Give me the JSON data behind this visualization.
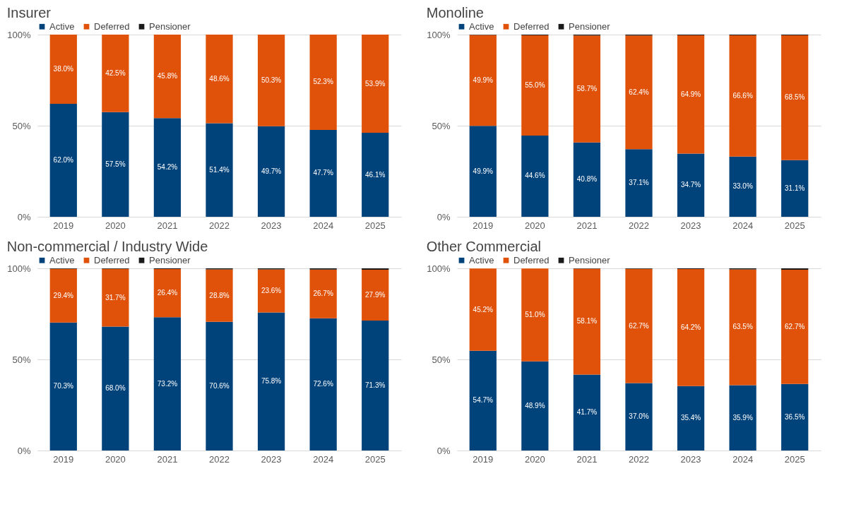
{
  "chart_data": [
    {
      "type": "bar",
      "title": "Insurer",
      "categories": [
        "2019",
        "2020",
        "2021",
        "2022",
        "2023",
        "2024",
        "2025"
      ],
      "stacked": true,
      "ylim": [
        0,
        100
      ],
      "yticks": [
        {
          "value": 0,
          "label": "0%"
        },
        {
          "value": 50,
          "label": "50%"
        },
        {
          "value": 100,
          "label": "100%"
        }
      ],
      "grid": "y",
      "legend": "top left",
      "series": [
        {
          "name": "Active",
          "color": "#00427a",
          "values": [
            62.0,
            57.5,
            54.2,
            51.4,
            49.7,
            47.7,
            46.1
          ],
          "value_labels": [
            "62.0%",
            "57.5%",
            "54.2%",
            "51.4%",
            "49.7%",
            "47.7%",
            "46.1%"
          ]
        },
        {
          "name": "Deferred",
          "color": "#e0520a",
          "values": [
            38.0,
            42.5,
            45.8,
            48.6,
            50.3,
            52.3,
            53.9
          ],
          "value_labels": [
            "38.0%",
            "42.5%",
            "45.8%",
            "48.6%",
            "50.3%",
            "52.3%",
            "53.9%"
          ]
        },
        {
          "name": "Pensioner",
          "color": "#1a1a1a",
          "values": [
            0,
            0,
            0,
            0,
            0,
            0,
            0
          ]
        }
      ]
    },
    {
      "type": "bar",
      "title": "Monoline",
      "categories": [
        "2019",
        "2020",
        "2021",
        "2022",
        "2023",
        "2024",
        "2025"
      ],
      "stacked": true,
      "ylim": [
        0,
        100
      ],
      "yticks": [
        {
          "value": 0,
          "label": "0%"
        },
        {
          "value": 50,
          "label": "50%"
        },
        {
          "value": 100,
          "label": "100%"
        }
      ],
      "grid": "y",
      "legend": "top left",
      "series": [
        {
          "name": "Active",
          "color": "#00427a",
          "values": [
            49.9,
            44.6,
            40.8,
            37.1,
            34.7,
            33.0,
            31.1
          ],
          "value_labels": [
            "49.9%",
            "44.6%",
            "40.8%",
            "37.1%",
            "34.7%",
            "33.0%",
            "31.1%"
          ]
        },
        {
          "name": "Deferred",
          "color": "#e0520a",
          "values": [
            49.9,
            55.0,
            58.7,
            62.4,
            64.9,
            66.6,
            68.5
          ],
          "value_labels": [
            "49.9%",
            "55.0%",
            "58.7%",
            "62.4%",
            "64.9%",
            "66.6%",
            "68.5%"
          ]
        },
        {
          "name": "Pensioner",
          "color": "#1a1a1a",
          "values": [
            0.2,
            0.4,
            0.5,
            0.5,
            0.4,
            0.4,
            0.4
          ]
        }
      ]
    },
    {
      "type": "bar",
      "title": "Non-commercial / Industry Wide",
      "categories": [
        "2019",
        "2020",
        "2021",
        "2022",
        "2023",
        "2024",
        "2025"
      ],
      "stacked": true,
      "ylim": [
        0,
        100
      ],
      "yticks": [
        {
          "value": 0,
          "label": "0%"
        },
        {
          "value": 50,
          "label": "50%"
        },
        {
          "value": 100,
          "label": "100%"
        }
      ],
      "grid": "y",
      "legend": "top left",
      "series": [
        {
          "name": "Active",
          "color": "#00427a",
          "values": [
            70.3,
            68.0,
            73.2,
            70.6,
            75.8,
            72.6,
            71.3
          ],
          "value_labels": [
            "70.3%",
            "68.0%",
            "73.2%",
            "70.6%",
            "75.8%",
            "72.6%",
            "71.3%"
          ]
        },
        {
          "name": "Deferred",
          "color": "#e0520a",
          "values": [
            29.4,
            31.7,
            26.4,
            28.8,
            23.6,
            26.7,
            27.9
          ],
          "value_labels": [
            "29.4%",
            "31.7%",
            "26.4%",
            "28.8%",
            "23.6%",
            "26.7%",
            "27.9%"
          ]
        },
        {
          "name": "Pensioner",
          "color": "#1a1a1a",
          "values": [
            0.3,
            0.3,
            0.4,
            0.6,
            0.6,
            0.7,
            0.8
          ]
        }
      ]
    },
    {
      "type": "bar",
      "title": "Other Commercial",
      "categories": [
        "2019",
        "2020",
        "2021",
        "2022",
        "2023",
        "2024",
        "2025"
      ],
      "stacked": true,
      "ylim": [
        0,
        100
      ],
      "yticks": [
        {
          "value": 0,
          "label": "0%"
        },
        {
          "value": 50,
          "label": "50%"
        },
        {
          "value": 100,
          "label": "100%"
        }
      ],
      "grid": "y",
      "legend": "top left",
      "series": [
        {
          "name": "Active",
          "color": "#00427a",
          "values": [
            54.7,
            48.9,
            41.7,
            37.0,
            35.4,
            35.9,
            36.5
          ],
          "value_labels": [
            "54.7%",
            "48.9%",
            "41.7%",
            "37.0%",
            "35.4%",
            "35.9%",
            "36.5%"
          ]
        },
        {
          "name": "Deferred",
          "color": "#e0520a",
          "values": [
            45.2,
            51.0,
            58.1,
            62.7,
            64.2,
            63.5,
            62.7
          ],
          "value_labels": [
            "45.2%",
            "51.0%",
            "58.1%",
            "62.7%",
            "64.2%",
            "63.5%",
            "62.7%"
          ]
        },
        {
          "name": "Pensioner",
          "color": "#1a1a1a",
          "values": [
            null,
            null,
            0.2,
            0.3,
            0.4,
            0.6,
            0.8
          ]
        }
      ]
    }
  ]
}
